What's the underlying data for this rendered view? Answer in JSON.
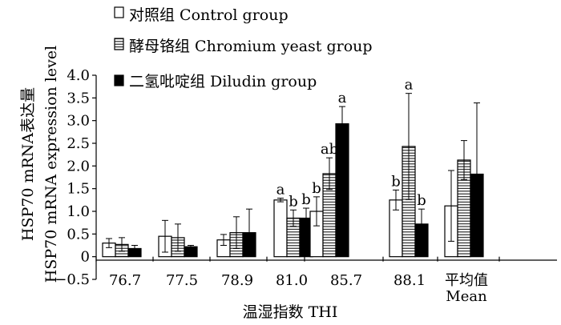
{
  "chart_data": {
    "type": "bar",
    "title": "",
    "xlabel": "温湿指数 THI",
    "ylabel_cn": "HSP70 mRNA表达量",
    "ylabel_en": "HSP70 mRNA expression level",
    "ylim": [
      -0.5,
      4.0
    ],
    "yticks": [
      -0.5,
      0,
      0.5,
      1.0,
      1.5,
      2.0,
      2.5,
      3.0,
      3.5,
      4.0
    ],
    "ytick_labels": [
      "−0.5",
      "0",
      "0.5",
      "1.0",
      "1.5",
      "2.0",
      "2.5",
      "3.0",
      "3.5",
      "4.0"
    ],
    "categories": [
      "76.7",
      "77.5",
      "78.9",
      "81.0",
      "85.7",
      "88.1",
      "平均值"
    ],
    "category_sublabels": [
      "",
      "",
      "",
      "",
      "",
      "",
      "Mean"
    ],
    "legend_position": "top-left",
    "series": [
      {
        "name": "对照组 Control group",
        "fill": "open",
        "values": [
          0.3,
          0.45,
          0.37,
          1.25,
          1.0,
          1.25,
          1.12
        ],
        "errors": [
          0.1,
          0.35,
          0.12,
          0.04,
          0.32,
          0.22,
          0.78
        ],
        "labels": [
          "",
          "",
          "",
          "a",
          "b",
          "b",
          ""
        ]
      },
      {
        "name": "酵母铬组 Chromium yeast group",
        "fill": "hatched",
        "values": [
          0.27,
          0.42,
          0.53,
          0.85,
          1.83,
          2.43,
          2.13
        ],
        "errors": [
          0.15,
          0.3,
          0.35,
          0.18,
          0.35,
          1.17,
          0.43
        ],
        "labels": [
          "",
          "",
          "",
          "b",
          "ab",
          "a",
          ""
        ]
      },
      {
        "name": "二氢吡啶组 Diludin group",
        "fill": "solid",
        "values": [
          0.18,
          0.22,
          0.53,
          0.85,
          2.93,
          0.72,
          1.82
        ],
        "errors": [
          0.07,
          0.03,
          0.52,
          0.22,
          0.38,
          0.33,
          1.57
        ],
        "labels": [
          "",
          "",
          "",
          "b",
          "a",
          "b",
          ""
        ]
      }
    ],
    "colors": {
      "axis": "#000000",
      "bar_edge": "#000000",
      "bar_fill_open": "#ffffff",
      "bar_fill_solid": "#000000"
    }
  }
}
